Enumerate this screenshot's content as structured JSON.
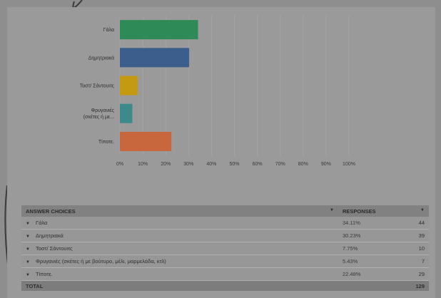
{
  "chart_data": {
    "type": "bar",
    "orientation": "horizontal",
    "categories": [
      "Γάλα",
      "Δημητριακά",
      "Τοστ/ Σάντουιτς",
      "Φρυγανιές (σκέτες ή με...",
      "Τίποτε."
    ],
    "values": [
      34.11,
      30.23,
      7.75,
      5.43,
      22.48
    ],
    "colors": [
      "#2e8a57",
      "#3b5e8c",
      "#c49a12",
      "#3c8a8c",
      "#c8663d"
    ],
    "x_ticks": [
      "0%",
      "10%",
      "20%",
      "30%",
      "40%",
      "50%",
      "60%",
      "70%",
      "80%",
      "90%",
      "100%"
    ],
    "xlim": [
      0,
      100
    ],
    "grid": true
  },
  "table": {
    "headers": {
      "choices": "ANSWER CHOICES",
      "responses": "RESPONSES"
    },
    "rows": [
      {
        "label": "Γάλα",
        "percent": "34.11%",
        "count": "44"
      },
      {
        "label": "Δημητριακά",
        "percent": "30.23%",
        "count": "39"
      },
      {
        "label": "Τοστ/ Σάντουιτς",
        "percent": "7.75%",
        "count": "10"
      },
      {
        "label": "Φρυγανιές (σκέτες ή με βούτυρο, μέλι, μαρμελάδα, κτλ)",
        "percent": "5.43%",
        "count": "7"
      },
      {
        "label": "Τίποτε.",
        "percent": "22.48%",
        "count": "29"
      }
    ],
    "total": {
      "label": "TOTAL",
      "count": "129"
    }
  }
}
